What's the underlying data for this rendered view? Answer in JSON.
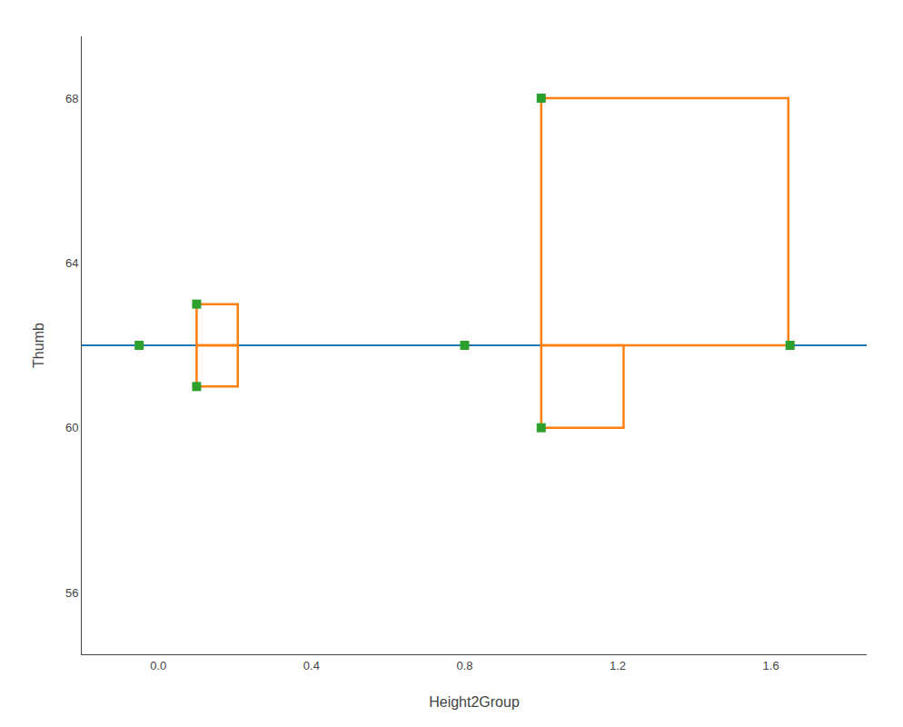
{
  "chart_data": {
    "type": "scatter",
    "xlabel": "Height2Group",
    "ylabel": "Thumb",
    "x": [
      -0.05,
      0.1,
      0.1,
      0.8,
      1.0,
      1.0,
      1.65
    ],
    "values": [
      62,
      63,
      61,
      62,
      68,
      60,
      62
    ],
    "grand_mean": 62,
    "xlim": [
      -0.2,
      1.85
    ],
    "ylim": [
      54.5,
      69.5
    ],
    "xticks": [
      {
        "value": 0,
        "label": "0.0"
      },
      0.4,
      0.8,
      1.2,
      1.6
    ],
    "yticks": [
      56,
      60,
      64,
      68
    ],
    "marker": "square",
    "grid": false
  }
}
